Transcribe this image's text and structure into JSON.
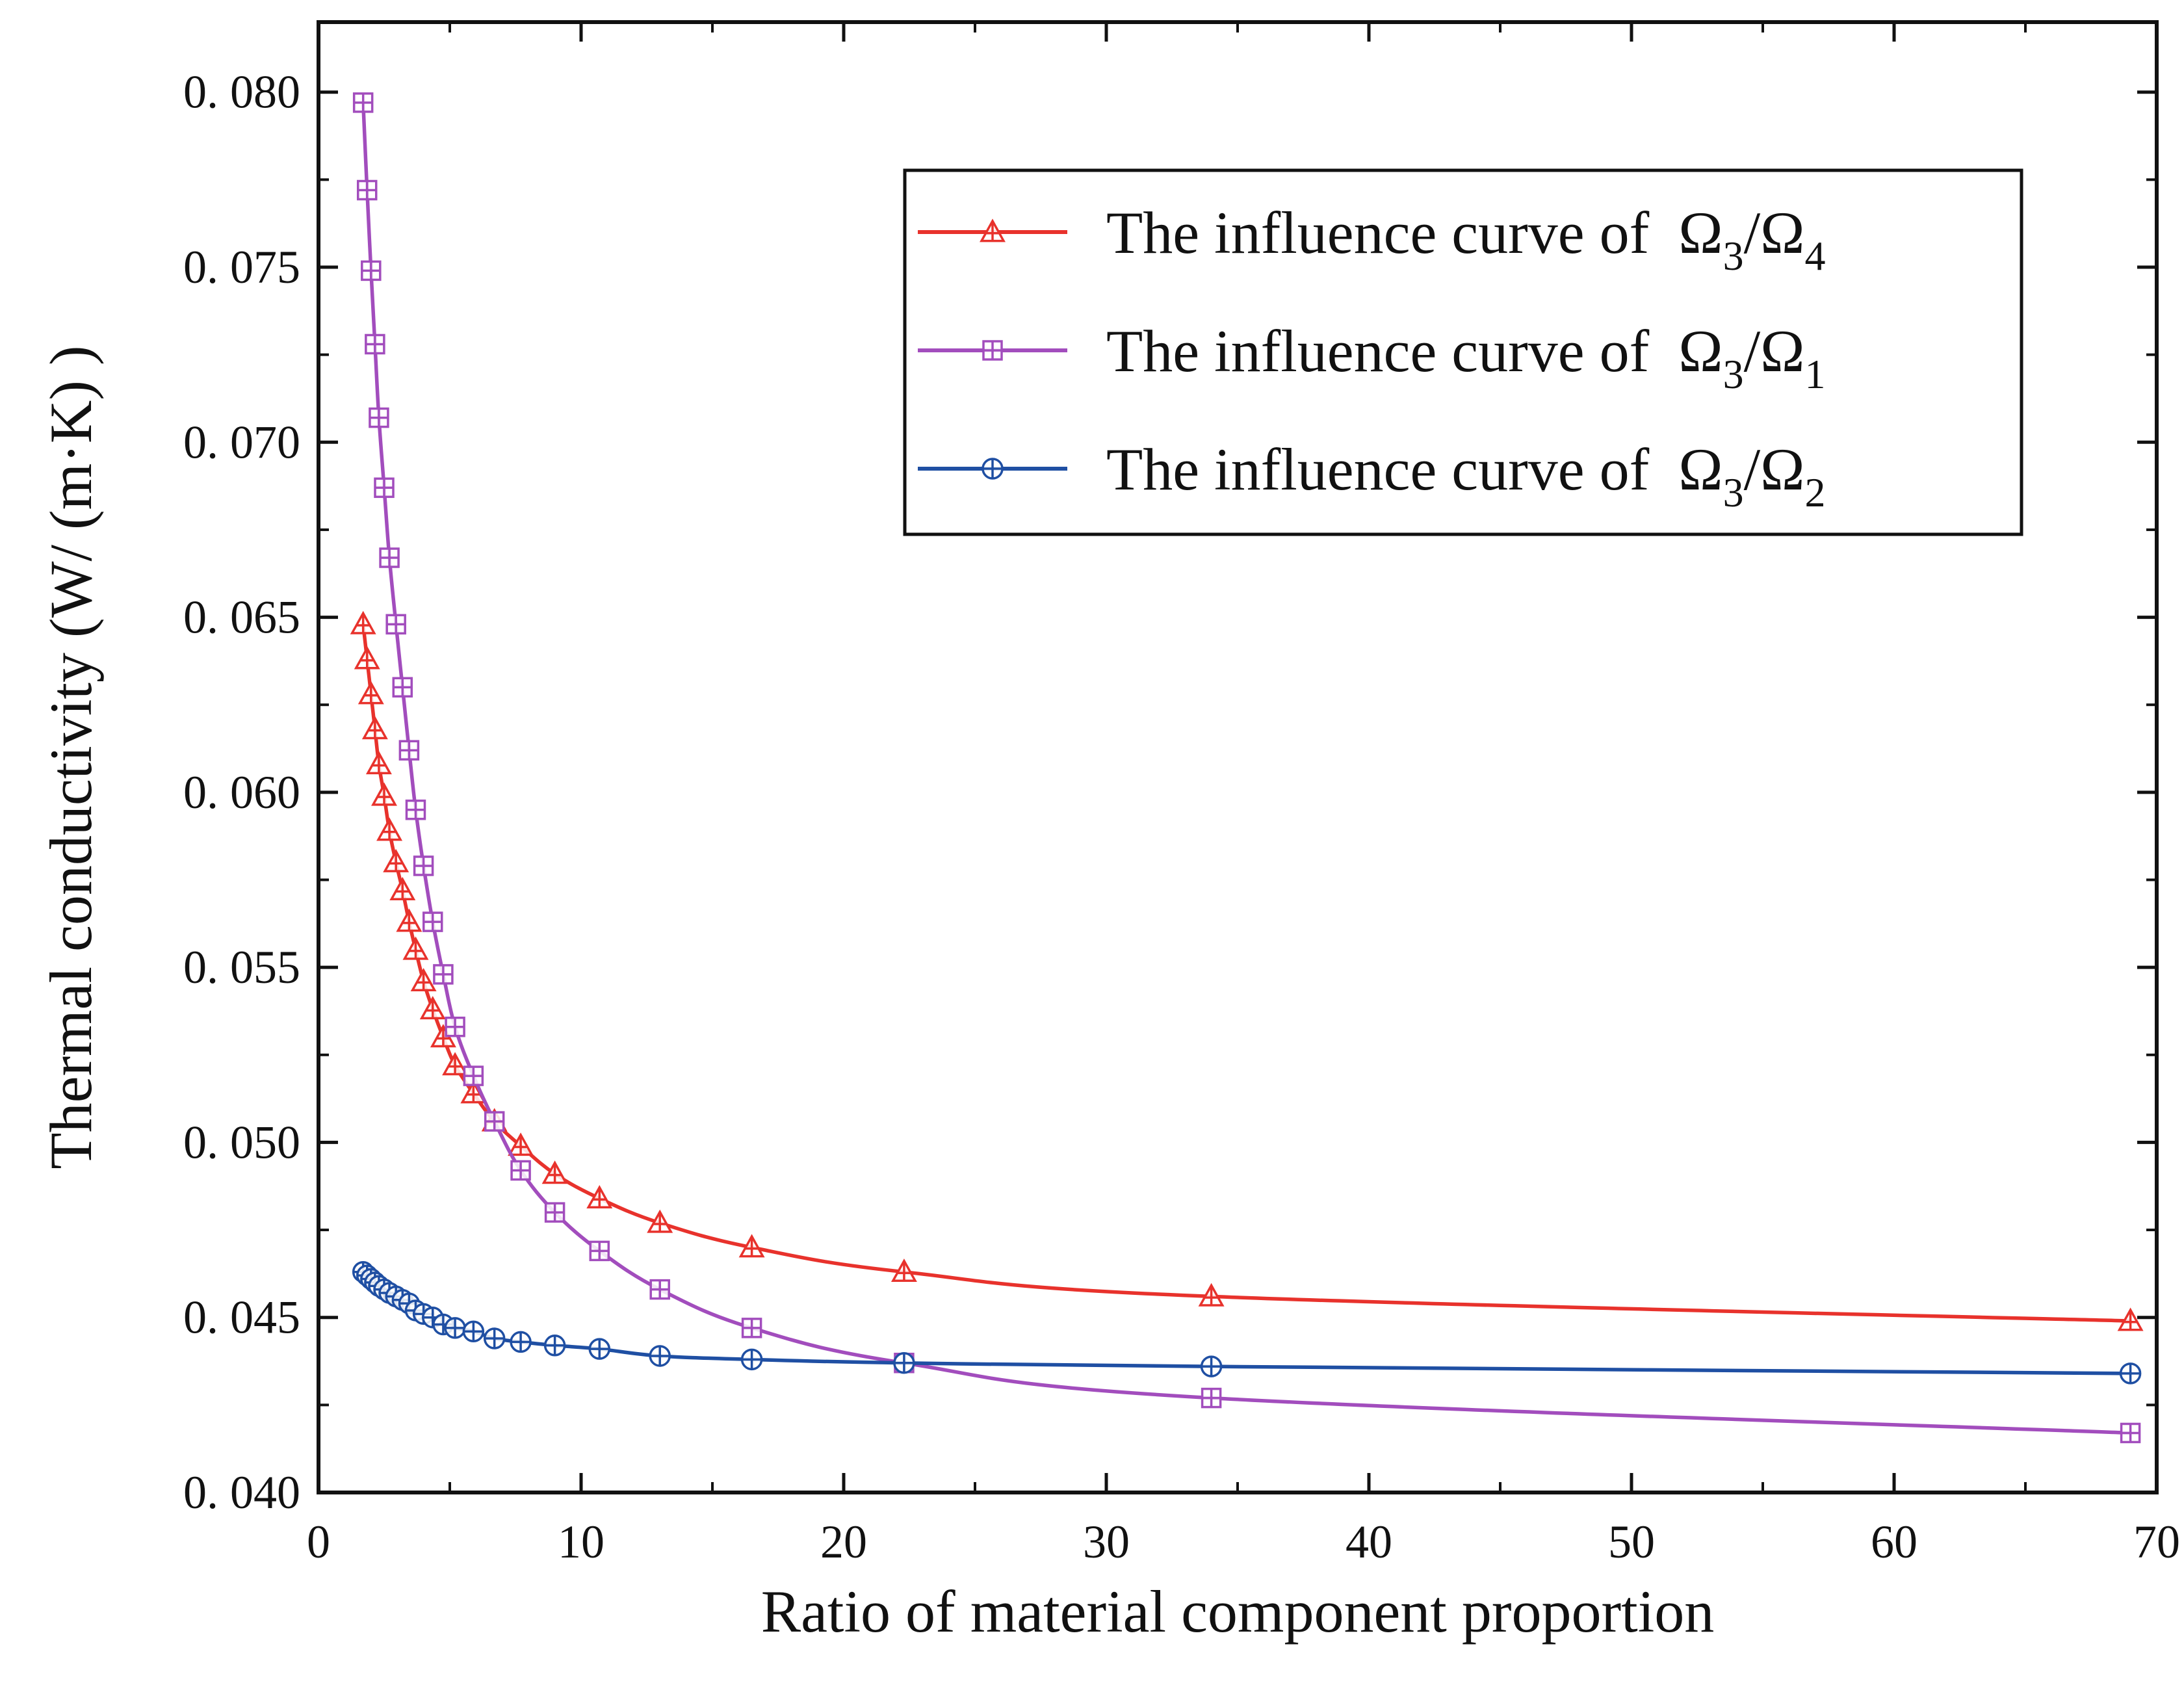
{
  "chart_data": {
    "type": "line",
    "xlabel": "Ratio of material component proportion",
    "ylabel": "Thermal conductivity (W/ (m·K) )",
    "xlim": [
      0,
      70
    ],
    "ylim": [
      0.04,
      0.082
    ],
    "xticks": [
      0,
      10,
      20,
      30,
      40,
      50,
      60,
      70
    ],
    "xtick_labels": [
      "0",
      "10",
      "20",
      "30",
      "40",
      "50",
      "60",
      "70"
    ],
    "yticks": [
      0.04,
      0.045,
      0.05,
      0.055,
      0.06,
      0.065,
      0.07,
      0.075,
      0.08
    ],
    "ytick_labels": [
      "0. 040",
      "0. 045",
      "0. 050",
      "0. 055",
      "0. 060",
      "0. 065",
      "0. 070",
      "0. 075",
      "0. 080"
    ],
    "legend_position": "top-right",
    "series": [
      {
        "name": "The influence curve of Ω3/Ω4",
        "legend_prefix": "The influence curve of ",
        "legend_math": [
          {
            "text": "Ω",
            "sub": "3"
          },
          {
            "text": "/Ω",
            "sub": "4"
          }
        ],
        "color": "#e8322c",
        "marker": "triangle-cross",
        "x": [
          1.7,
          1.85,
          2.0,
          2.15,
          2.3,
          2.5,
          2.7,
          2.95,
          3.2,
          3.45,
          3.7,
          4.0,
          4.35,
          4.75,
          5.2,
          5.9,
          6.7,
          7.7,
          9.0,
          10.7,
          13.0,
          16.5,
          22.3,
          34.0,
          69.0
        ],
        "y": [
          0.0648,
          0.0638,
          0.0628,
          0.0618,
          0.0608,
          0.0599,
          0.0589,
          0.058,
          0.0572,
          0.0563,
          0.0555,
          0.0546,
          0.0538,
          0.053,
          0.0522,
          0.0514,
          0.0506,
          0.0499,
          0.0491,
          0.0484,
          0.0477,
          0.047,
          0.0463,
          0.0456,
          0.0449
        ]
      },
      {
        "name": "The influence curve of Ω3/Ω1",
        "legend_prefix": "The influence curve of ",
        "legend_math": [
          {
            "text": "Ω",
            "sub": "3"
          },
          {
            "text": "/Ω",
            "sub": "1"
          }
        ],
        "color": "#a24dbd",
        "marker": "square-cross",
        "x": [
          1.7,
          1.85,
          2.0,
          2.15,
          2.3,
          2.5,
          2.7,
          2.95,
          3.2,
          3.45,
          3.7,
          4.0,
          4.35,
          4.75,
          5.2,
          5.9,
          6.7,
          7.7,
          9.0,
          10.7,
          13.0,
          16.5,
          22.3,
          34.0,
          69.0
        ],
        "y": [
          0.0797,
          0.0772,
          0.0749,
          0.0728,
          0.0707,
          0.0687,
          0.0667,
          0.0648,
          0.063,
          0.0612,
          0.0595,
          0.0579,
          0.0563,
          0.0548,
          0.0533,
          0.0519,
          0.0506,
          0.0492,
          0.048,
          0.0469,
          0.0458,
          0.0447,
          0.0437,
          0.0427,
          0.0417
        ]
      },
      {
        "name": "The influence curve of Ω3/Ω2",
        "legend_prefix": "The influence curve of ",
        "legend_math": [
          {
            "text": "Ω",
            "sub": "3"
          },
          {
            "text": "/Ω",
            "sub": "2"
          }
        ],
        "color": "#1f4fa3",
        "marker": "circle-cross",
        "x": [
          1.7,
          1.85,
          2.0,
          2.15,
          2.3,
          2.5,
          2.7,
          2.95,
          3.2,
          3.45,
          3.7,
          4.0,
          4.35,
          4.75,
          5.2,
          5.9,
          6.7,
          7.7,
          9.0,
          10.7,
          13.0,
          16.5,
          22.3,
          34.0,
          69.0
        ],
        "y": [
          0.0463,
          0.0462,
          0.0461,
          0.046,
          0.0459,
          0.0458,
          0.0457,
          0.0456,
          0.0455,
          0.0454,
          0.0452,
          0.0451,
          0.045,
          0.0448,
          0.0447,
          0.0446,
          0.0444,
          0.0443,
          0.0442,
          0.0441,
          0.0439,
          0.0438,
          0.0437,
          0.0436,
          0.0434
        ]
      }
    ]
  }
}
